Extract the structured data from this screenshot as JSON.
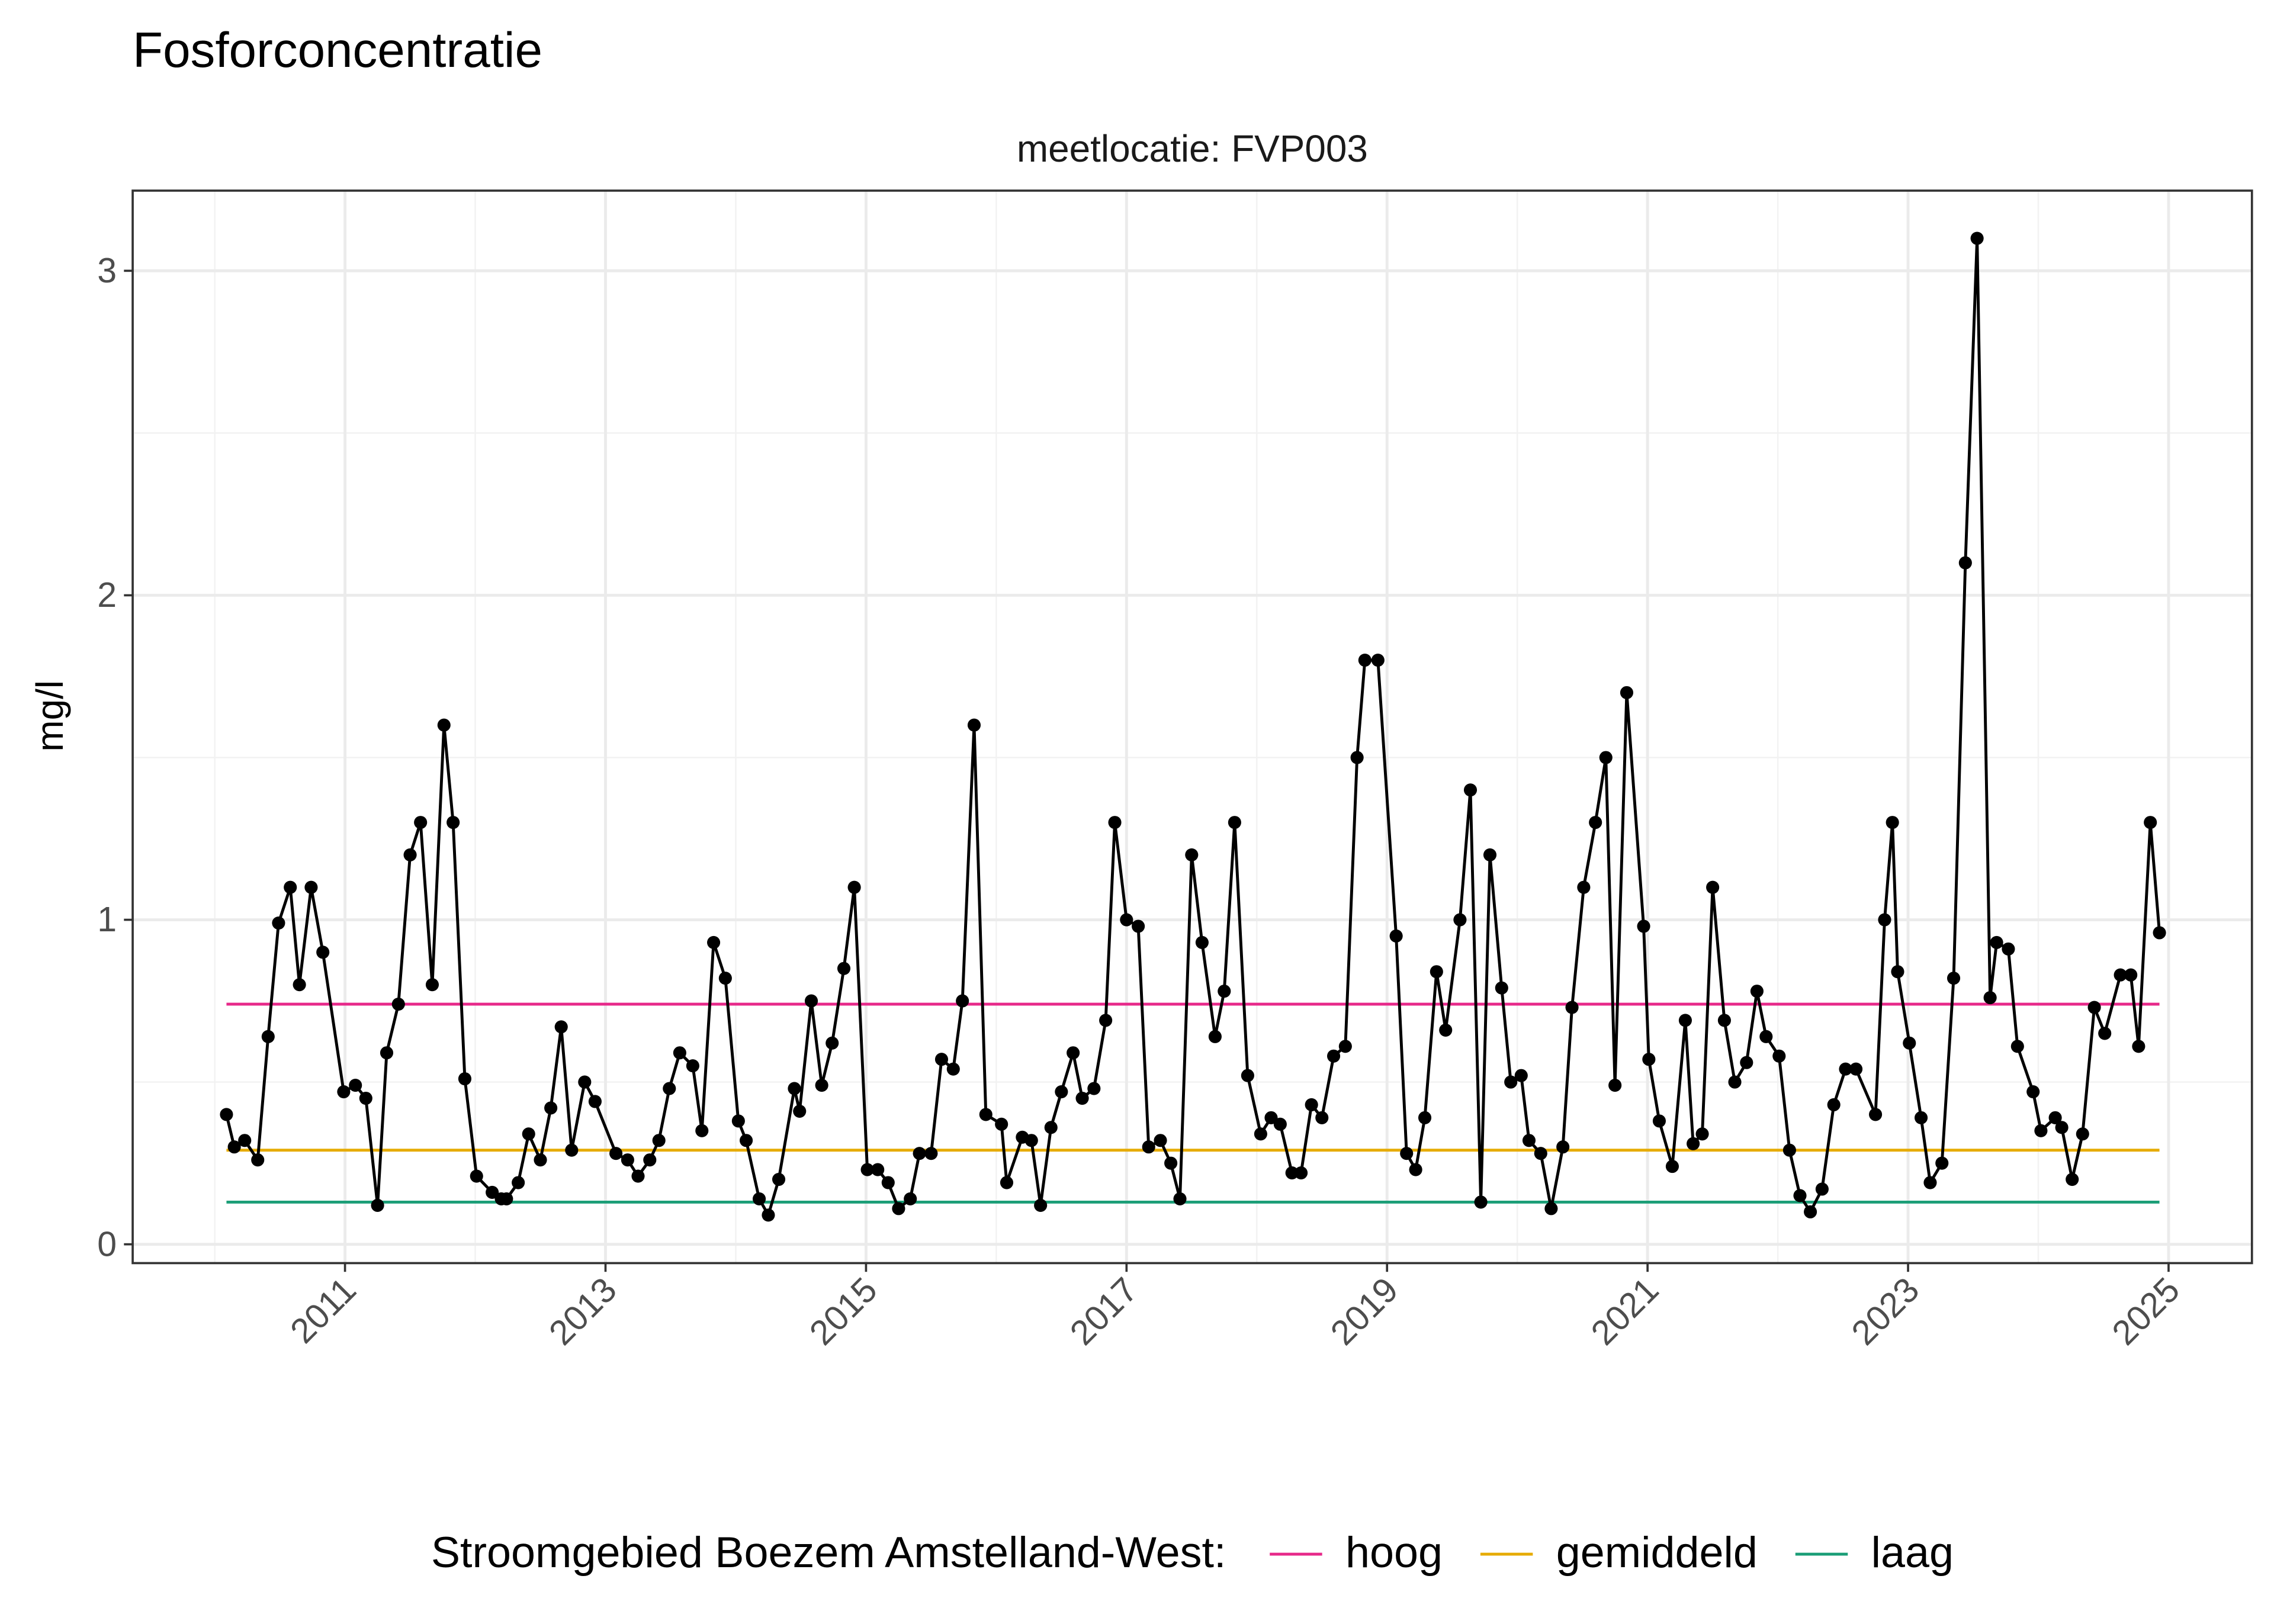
{
  "chart_data": {
    "type": "line",
    "title": "Fosforconcentratie",
    "subtitle": "meetlocatie: FVP003",
    "y_label": "mg/l",
    "xlim": [
      2009.37,
      2025.64
    ],
    "xticks": [
      2011,
      2013,
      2015,
      2017,
      2019,
      2021,
      2023,
      2025
    ],
    "ylim": [
      -0.058,
      3.247
    ],
    "yticks": [
      0,
      1,
      2,
      3
    ],
    "grid": true,
    "legend_title": "Stroomgebied Boezem Amstelland-West:",
    "legend_position": "bottom",
    "x": [
      2010.09,
      2010.15,
      2010.23,
      2010.33,
      2010.41,
      2010.49,
      2010.58,
      2010.65,
      2010.74,
      2010.83,
      2010.99,
      2011.08,
      2011.16,
      2011.25,
      2011.32,
      2011.41,
      2011.5,
      2011.58,
      2011.67,
      2011.76,
      2011.83,
      2011.92,
      2012.01,
      2012.13,
      2012.2,
      2012.24,
      2012.33,
      2012.41,
      2012.5,
      2012.58,
      2012.66,
      2012.74,
      2012.84,
      2012.92,
      2013.08,
      2013.17,
      2013.25,
      2013.34,
      2013.41,
      2013.49,
      2013.57,
      2013.67,
      2013.74,
      2013.83,
      2013.92,
      2014.02,
      2014.08,
      2014.18,
      2014.25,
      2014.33,
      2014.45,
      2014.49,
      2014.58,
      2014.66,
      2014.74,
      2014.83,
      2014.91,
      2015.01,
      2015.09,
      2015.17,
      2015.25,
      2015.34,
      2015.41,
      2015.5,
      2015.58,
      2015.67,
      2015.74,
      2015.83,
      2015.92,
      2016.04,
      2016.08,
      2016.2,
      2016.27,
      2016.34,
      2016.42,
      2016.5,
      2016.59,
      2016.66,
      2016.75,
      2016.84,
      2016.91,
      2017.0,
      2017.09,
      2017.17,
      2017.26,
      2017.34,
      2017.41,
      2017.5,
      2017.58,
      2017.68,
      2017.75,
      2017.83,
      2017.93,
      2018.03,
      2018.11,
      2018.18,
      2018.27,
      2018.34,
      2018.42,
      2018.5,
      2018.59,
      2018.68,
      2018.77,
      2018.83,
      2018.93,
      2019.07,
      2019.15,
      2019.22,
      2019.29,
      2019.38,
      2019.45,
      2019.56,
      2019.64,
      2019.72,
      2019.79,
      2019.88,
      2019.95,
      2020.03,
      2020.09,
      2020.18,
      2020.26,
      2020.35,
      2020.42,
      2020.51,
      2020.6,
      2020.68,
      2020.75,
      2020.84,
      2020.97,
      2021.01,
      2021.09,
      2021.19,
      2021.29,
      2021.35,
      2021.42,
      2021.5,
      2021.59,
      2021.67,
      2021.76,
      2021.84,
      2021.91,
      2022.01,
      2022.09,
      2022.17,
      2022.25,
      2022.34,
      2022.43,
      2022.52,
      2022.6,
      2022.75,
      2022.82,
      2022.88,
      2022.92,
      2023.01,
      2023.1,
      2023.17,
      2023.26,
      2023.35,
      2023.44,
      2023.53,
      2023.63,
      2023.68,
      2023.77,
      2023.84,
      2023.96,
      2024.02,
      2024.13,
      2024.18,
      2024.26,
      2024.34,
      2024.43,
      2024.51,
      2024.63,
      2024.71,
      2024.77,
      2024.86,
      2024.93
    ],
    "series": [
      {
        "name": "mg/l",
        "color": "#000000",
        "values": [
          0.4,
          0.3,
          0.32,
          0.26,
          0.64,
          0.99,
          1.1,
          0.8,
          1.1,
          0.9,
          0.47,
          0.49,
          0.45,
          0.12,
          0.59,
          0.74,
          1.2,
          1.3,
          0.8,
          1.6,
          1.3,
          0.51,
          0.21,
          0.16,
          0.14,
          0.14,
          0.19,
          0.34,
          0.26,
          0.42,
          0.67,
          0.29,
          0.5,
          0.44,
          0.28,
          0.26,
          0.21,
          0.26,
          0.32,
          0.48,
          0.59,
          0.55,
          0.35,
          0.93,
          0.82,
          0.38,
          0.32,
          0.14,
          0.09,
          0.2,
          0.48,
          0.41,
          0.75,
          0.49,
          0.62,
          0.85,
          1.1,
          0.23,
          0.23,
          0.19,
          0.11,
          0.14,
          0.28,
          0.28,
          0.57,
          0.54,
          0.75,
          1.6,
          0.4,
          0.37,
          0.19,
          0.33,
          0.32,
          0.12,
          0.36,
          0.47,
          0.59,
          0.45,
          0.48,
          0.69,
          1.3,
          1.0,
          0.98,
          0.3,
          0.32,
          0.25,
          0.14,
          1.2,
          0.93,
          0.64,
          0.78,
          1.3,
          0.52,
          0.34,
          0.39,
          0.37,
          0.22,
          0.22,
          0.43,
          0.39,
          0.58,
          0.61,
          1.5,
          1.8,
          1.8,
          0.95,
          0.28,
          0.23,
          0.39,
          0.84,
          0.66,
          1.0,
          1.4,
          0.13,
          1.2,
          0.79,
          0.5,
          0.52,
          0.32,
          0.28,
          0.11,
          0.3,
          0.73,
          1.1,
          1.3,
          1.5,
          0.49,
          1.7,
          0.98,
          0.57,
          0.38,
          0.24,
          0.69,
          0.31,
          0.34,
          1.1,
          0.69,
          0.5,
          0.56,
          0.78,
          0.64,
          0.58,
          0.29,
          0.15,
          0.1,
          0.17,
          0.43,
          0.54,
          0.54,
          0.4,
          1.0,
          1.3,
          0.84,
          0.62,
          0.39,
          0.19,
          0.25,
          0.82,
          2.1,
          3.1,
          0.76,
          0.93,
          0.91,
          0.61,
          0.47,
          0.35,
          0.39,
          0.36,
          0.2,
          0.34,
          0.73,
          0.65,
          0.83,
          0.83,
          0.61,
          1.3,
          0.96
        ]
      }
    ],
    "reference_lines": [
      {
        "name": "hoog",
        "color": "#e7298a",
        "value": 0.74
      },
      {
        "name": "gemiddeld",
        "color": "#e6ab02",
        "value": 0.29
      },
      {
        "name": "laag",
        "color": "#1b9e77",
        "value": 0.13
      }
    ]
  }
}
